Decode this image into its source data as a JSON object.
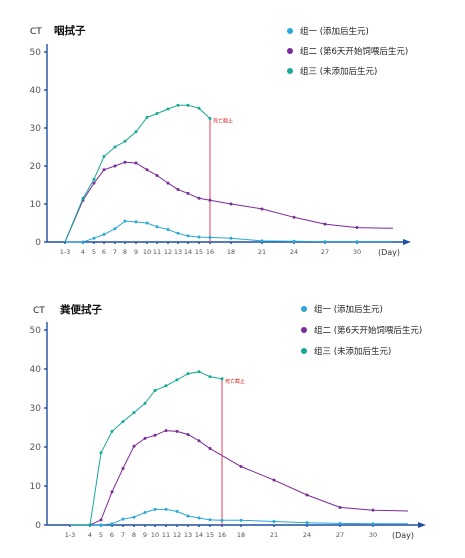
{
  "colors": {
    "axis": "#1f4fa3",
    "death_line": "#e8405a",
    "death_text": "#e02020"
  },
  "chart_data": [
    {
      "type": "line",
      "title": "咽拭子",
      "ylabel": "CT",
      "xlabel": "(Day)",
      "ylim": [
        0,
        50
      ],
      "yticks": [
        0,
        10,
        20,
        30,
        40,
        50
      ],
      "categories": [
        "1-3",
        "4",
        "5",
        "6",
        "7",
        "8",
        "9",
        "10",
        "11",
        "12",
        "13",
        "14",
        "15",
        "16",
        "18",
        "21",
        "24",
        "27",
        "30"
      ],
      "axis_start": 0,
      "legend_position": "top-right",
      "annotation": {
        "text": "死亡截止",
        "x": 16,
        "color": "#e8405a"
      },
      "series": [
        {
          "name": "组一 (添加后生元)",
          "color": "#2aa8d8",
          "points": [
            [
              2,
              0
            ],
            [
              4,
              0
            ],
            [
              5,
              1
            ],
            [
              6,
              2
            ],
            [
              7,
              3.5
            ],
            [
              8,
              5.5
            ],
            [
              9,
              5.3
            ],
            [
              10,
              5
            ],
            [
              11,
              4
            ],
            [
              12,
              3.3
            ],
            [
              13,
              2.3
            ],
            [
              14,
              1.6
            ],
            [
              15,
              1.3
            ],
            [
              16,
              1.2
            ],
            [
              18,
              1
            ],
            [
              21,
              0.3
            ],
            [
              24,
              0.2
            ],
            [
              27,
              0.1
            ],
            [
              30,
              0.1
            ],
            [
              33,
              0.1
            ]
          ]
        },
        {
          "name": "组二 (第6天开始饲喂后生元)",
          "color": "#7b2a9a",
          "points": [
            [
              2,
              0
            ],
            [
              4,
              11
            ],
            [
              5,
              15.5
            ],
            [
              6,
              19
            ],
            [
              7,
              20
            ],
            [
              8,
              21
            ],
            [
              9,
              20.8
            ],
            [
              10,
              19
            ],
            [
              11,
              17.5
            ],
            [
              12,
              15.5
            ],
            [
              13,
              13.8
            ],
            [
              14,
              12.8
            ],
            [
              15,
              11.5
            ],
            [
              16,
              11
            ],
            [
              18,
              10
            ],
            [
              21,
              8.7
            ],
            [
              24,
              6.5
            ],
            [
              27,
              4.7
            ],
            [
              30,
              3.8
            ],
            [
              33,
              3.6
            ]
          ]
        },
        {
          "name": "组三 (未添加后生元)",
          "color": "#17a89a",
          "points": [
            [
              2,
              0
            ],
            [
              4,
              11.5
            ],
            [
              5,
              16.5
            ],
            [
              6,
              22.5
            ],
            [
              7,
              25
            ],
            [
              8,
              26.5
            ],
            [
              9,
              29
            ],
            [
              10,
              32.8
            ],
            [
              11,
              33.8
            ],
            [
              12,
              35
            ],
            [
              13,
              36
            ],
            [
              14,
              36
            ],
            [
              15,
              35.2
            ],
            [
              16,
              32.5
            ]
          ]
        }
      ]
    },
    {
      "type": "line",
      "title": "粪便拭子",
      "ylabel": "CT",
      "xlabel": "(Day)",
      "ylim": [
        0,
        50
      ],
      "yticks": [
        0,
        10,
        20,
        30,
        40,
        50
      ],
      "categories": [
        "1-3",
        "4",
        "5",
        "6",
        "7",
        "8",
        "9",
        "10",
        "11",
        "12",
        "13",
        "14",
        "15",
        "16",
        "18",
        "21",
        "24",
        "27",
        "30"
      ],
      "axis_start": 0,
      "legend_position": "top-right",
      "annotation": {
        "text": "死亡截止",
        "x": 16,
        "color": "#e8405a"
      },
      "series": [
        {
          "name": "组一 (添加后生元)",
          "color": "#2aa8d8",
          "points": [
            [
              2,
              0
            ],
            [
              4,
              0
            ],
            [
              5,
              0
            ],
            [
              6,
              0.3
            ],
            [
              7,
              1.5
            ],
            [
              8,
              2
            ],
            [
              9,
              3.2
            ],
            [
              10,
              4
            ],
            [
              11,
              4
            ],
            [
              12,
              3.5
            ],
            [
              13,
              2.3
            ],
            [
              14,
              1.8
            ],
            [
              15,
              1.3
            ],
            [
              16,
              1.2
            ],
            [
              18,
              1.2
            ],
            [
              21,
              0.9
            ],
            [
              24,
              0.6
            ],
            [
              27,
              0.4
            ],
            [
              30,
              0.3
            ],
            [
              33,
              0.3
            ]
          ]
        },
        {
          "name": "组二 (第6天开始饲喂后生元)",
          "color": "#7b2a9a",
          "points": [
            [
              2,
              0
            ],
            [
              4,
              0
            ],
            [
              5,
              1.3
            ],
            [
              6,
              8.5
            ],
            [
              7,
              14.5
            ],
            [
              8,
              20.2
            ],
            [
              9,
              22.2
            ],
            [
              10,
              23
            ],
            [
              11,
              24.2
            ],
            [
              12,
              24
            ],
            [
              13,
              23.2
            ],
            [
              14,
              21.6
            ],
            [
              15,
              19.6
            ],
            [
              18,
              15
            ],
            [
              21,
              11.5
            ],
            [
              24,
              7.7
            ],
            [
              27,
              4.5
            ],
            [
              30,
              3.8
            ],
            [
              33,
              3.6
            ]
          ]
        },
        {
          "name": "组三 (未添加后生元)",
          "color": "#17a89a",
          "points": [
            [
              2,
              0
            ],
            [
              4,
              0
            ],
            [
              5,
              18.5
            ],
            [
              6,
              24
            ],
            [
              7,
              26.5
            ],
            [
              8,
              28.8
            ],
            [
              9,
              31.2
            ],
            [
              10,
              34.5
            ],
            [
              11,
              35.7
            ],
            [
              12,
              37.2
            ],
            [
              13,
              38.8
            ],
            [
              14,
              39.3
            ],
            [
              15,
              38
            ],
            [
              16,
              37.5
            ]
          ]
        }
      ]
    }
  ]
}
